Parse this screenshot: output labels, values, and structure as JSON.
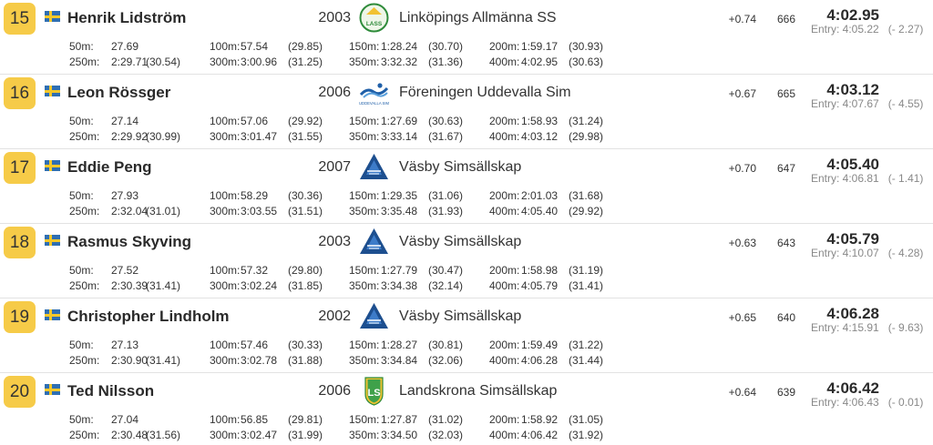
{
  "results": [
    {
      "place": "15",
      "name": "Henrik Lidström",
      "year": "2003",
      "club": "Linköpings Allmänna SS",
      "club_logo": "lass-logo",
      "logo_text": "LASS",
      "reaction": "+0.74",
      "points": "666",
      "time": "4:02.95",
      "entry": "Entry: 4:05.22",
      "entry_diff": "(- 2.27)",
      "splits": [
        {
          "label": "50m:",
          "time": "27.69",
          "lap": ""
        },
        {
          "label": "100m:",
          "time": "57.54",
          "lap": "(29.85)"
        },
        {
          "label": "150m:",
          "time": "1:28.24",
          "lap": "(30.70)"
        },
        {
          "label": "200m:",
          "time": "1:59.17",
          "lap": "(30.93)"
        },
        {
          "label": "250m:",
          "time": "2:29.71",
          "lap": "(30.54)"
        },
        {
          "label": "300m:",
          "time": "3:00.96",
          "lap": "(31.25)"
        },
        {
          "label": "350m:",
          "time": "3:32.32",
          "lap": "(31.36)"
        },
        {
          "label": "400m:",
          "time": "4:02.95",
          "lap": "(30.63)"
        }
      ]
    },
    {
      "place": "16",
      "name": "Leon Rössger",
      "year": "2006",
      "club": "Föreningen Uddevalla Sim",
      "club_logo": "uddevalla-sim-logo",
      "logo_text": "UDDEVALLA SIM",
      "reaction": "+0.67",
      "points": "665",
      "time": "4:03.12",
      "entry": "Entry: 4:07.67",
      "entry_diff": "(- 4.55)",
      "splits": [
        {
          "label": "50m:",
          "time": "27.14",
          "lap": ""
        },
        {
          "label": "100m:",
          "time": "57.06",
          "lap": "(29.92)"
        },
        {
          "label": "150m:",
          "time": "1:27.69",
          "lap": "(30.63)"
        },
        {
          "label": "200m:",
          "time": "1:58.93",
          "lap": "(31.24)"
        },
        {
          "label": "250m:",
          "time": "2:29.92",
          "lap": "(30.99)"
        },
        {
          "label": "300m:",
          "time": "3:01.47",
          "lap": "(31.55)"
        },
        {
          "label": "350m:",
          "time": "3:33.14",
          "lap": "(31.67)"
        },
        {
          "label": "400m:",
          "time": "4:03.12",
          "lap": "(29.98)"
        }
      ]
    },
    {
      "place": "17",
      "name": "Eddie Peng",
      "year": "2007",
      "club": "Väsby Simsällskap",
      "club_logo": "vasby-logo",
      "logo_text": "",
      "reaction": "+0.70",
      "points": "647",
      "time": "4:05.40",
      "entry": "Entry: 4:06.81",
      "entry_diff": "(- 1.41)",
      "splits": [
        {
          "label": "50m:",
          "time": "27.93",
          "lap": ""
        },
        {
          "label": "100m:",
          "time": "58.29",
          "lap": "(30.36)"
        },
        {
          "label": "150m:",
          "time": "1:29.35",
          "lap": "(31.06)"
        },
        {
          "label": "200m:",
          "time": "2:01.03",
          "lap": "(31.68)"
        },
        {
          "label": "250m:",
          "time": "2:32.04",
          "lap": "(31.01)"
        },
        {
          "label": "300m:",
          "time": "3:03.55",
          "lap": "(31.51)"
        },
        {
          "label": "350m:",
          "time": "3:35.48",
          "lap": "(31.93)"
        },
        {
          "label": "400m:",
          "time": "4:05.40",
          "lap": "(29.92)"
        }
      ]
    },
    {
      "place": "18",
      "name": "Rasmus Skyving",
      "year": "2003",
      "club": "Väsby Simsällskap",
      "club_logo": "vasby-logo",
      "logo_text": "",
      "reaction": "+0.63",
      "points": "643",
      "time": "4:05.79",
      "entry": "Entry: 4:10.07",
      "entry_diff": "(- 4.28)",
      "splits": [
        {
          "label": "50m:",
          "time": "27.52",
          "lap": ""
        },
        {
          "label": "100m:",
          "time": "57.32",
          "lap": "(29.80)"
        },
        {
          "label": "150m:",
          "time": "1:27.79",
          "lap": "(30.47)"
        },
        {
          "label": "200m:",
          "time": "1:58.98",
          "lap": "(31.19)"
        },
        {
          "label": "250m:",
          "time": "2:30.39",
          "lap": "(31.41)"
        },
        {
          "label": "300m:",
          "time": "3:02.24",
          "lap": "(31.85)"
        },
        {
          "label": "350m:",
          "time": "3:34.38",
          "lap": "(32.14)"
        },
        {
          "label": "400m:",
          "time": "4:05.79",
          "lap": "(31.41)"
        }
      ]
    },
    {
      "place": "19",
      "name": "Christopher Lindholm",
      "year": "2002",
      "club": "Väsby Simsällskap",
      "club_logo": "vasby-logo",
      "logo_text": "",
      "reaction": "+0.65",
      "points": "640",
      "time": "4:06.28",
      "entry": "Entry: 4:15.91",
      "entry_diff": "(- 9.63)",
      "splits": [
        {
          "label": "50m:",
          "time": "27.13",
          "lap": ""
        },
        {
          "label": "100m:",
          "time": "57.46",
          "lap": "(30.33)"
        },
        {
          "label": "150m:",
          "time": "1:28.27",
          "lap": "(30.81)"
        },
        {
          "label": "200m:",
          "time": "1:59.49",
          "lap": "(31.22)"
        },
        {
          "label": "250m:",
          "time": "2:30.90",
          "lap": "(31.41)"
        },
        {
          "label": "300m:",
          "time": "3:02.78",
          "lap": "(31.88)"
        },
        {
          "label": "350m:",
          "time": "3:34.84",
          "lap": "(32.06)"
        },
        {
          "label": "400m:",
          "time": "4:06.28",
          "lap": "(31.44)"
        }
      ]
    },
    {
      "place": "20",
      "name": "Ted Nilsson",
      "year": "2006",
      "club": "Landskrona Simsällskap",
      "club_logo": "landskrona-logo",
      "logo_text": "LS",
      "reaction": "+0.64",
      "points": "639",
      "time": "4:06.42",
      "entry": "Entry: 4:06.43",
      "entry_diff": "(- 0.01)",
      "splits": [
        {
          "label": "50m:",
          "time": "27.04",
          "lap": ""
        },
        {
          "label": "100m:",
          "time": "56.85",
          "lap": "(29.81)"
        },
        {
          "label": "150m:",
          "time": "1:27.87",
          "lap": "(31.02)"
        },
        {
          "label": "200m:",
          "time": "1:58.92",
          "lap": "(31.05)"
        },
        {
          "label": "250m:",
          "time": "2:30.48",
          "lap": "(31.56)"
        },
        {
          "label": "300m:",
          "time": "3:02.47",
          "lap": "(31.99)"
        },
        {
          "label": "350m:",
          "time": "3:34.50",
          "lap": "(32.03)"
        },
        {
          "label": "400m:",
          "time": "4:06.42",
          "lap": "(31.92)"
        }
      ]
    }
  ]
}
